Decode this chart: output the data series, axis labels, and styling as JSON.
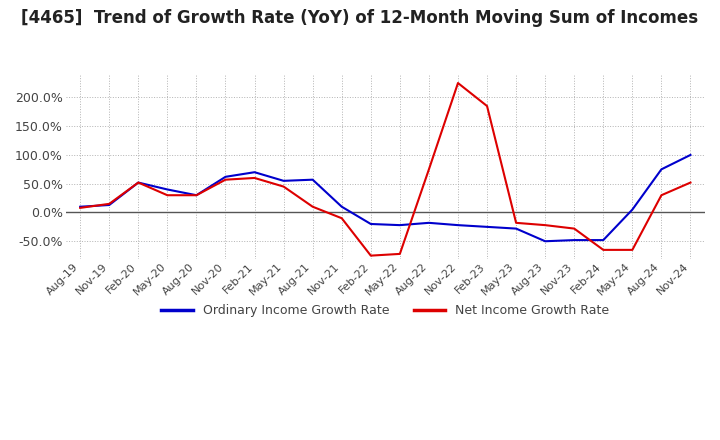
{
  "title": "[4465]  Trend of Growth Rate (YoY) of 12-Month Moving Sum of Incomes",
  "title_fontsize": 12,
  "ylim": [
    -80,
    240
  ],
  "yticks": [
    -50,
    0,
    50,
    100,
    150,
    200
  ],
  "yticklabels": [
    "-50.0%",
    "0.0%",
    "50.0%",
    "100.0%",
    "150.0%",
    "200.0%"
  ],
  "background_color": "#ffffff",
  "grid_color": "#aaaaaa",
  "legend_labels": [
    "Ordinary Income Growth Rate",
    "Net Income Growth Rate"
  ],
  "legend_colors": [
    "#0000cc",
    "#dd0000"
  ],
  "x_labels": [
    "Aug-19",
    "Nov-19",
    "Feb-20",
    "May-20",
    "Aug-20",
    "Nov-20",
    "Feb-21",
    "May-21",
    "Aug-21",
    "Nov-21",
    "Feb-22",
    "May-22",
    "Aug-22",
    "Nov-22",
    "Feb-23",
    "May-23",
    "Aug-23",
    "Nov-23",
    "Feb-24",
    "May-24",
    "Aug-24",
    "Nov-24"
  ],
  "ordinary_income": [
    10,
    13,
    52,
    40,
    30,
    62,
    70,
    55,
    57,
    10,
    -20,
    -22,
    -18,
    -22,
    -25,
    -28,
    -50,
    -48,
    -48,
    5,
    75,
    100
  ],
  "net_income": [
    8,
    15,
    52,
    30,
    30,
    57,
    60,
    45,
    10,
    -10,
    -75,
    -72,
    75,
    225,
    185,
    -18,
    -22,
    -28,
    -65,
    -65,
    30,
    52
  ]
}
